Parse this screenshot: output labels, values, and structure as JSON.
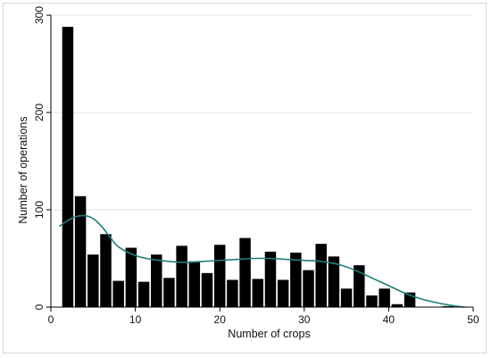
{
  "chart_data": {
    "type": "bar",
    "title": "",
    "xlabel": "Number of crops",
    "ylabel": "Number of operations",
    "xlim": [
      0,
      50
    ],
    "ylim": [
      0,
      300
    ],
    "x_ticks": [
      0,
      10,
      20,
      30,
      40,
      50
    ],
    "y_ticks": [
      0,
      100,
      200,
      300
    ],
    "grid": "horizontal",
    "legend": "none",
    "colors": {
      "bars": "#000000",
      "density": "#1f7f7b",
      "grid": "#d8e4ea"
    },
    "series": [
      {
        "type": "bar",
        "x": [
          2,
          3.5,
          5,
          6.5,
          8,
          9.5,
          11,
          12.5,
          14,
          15.5,
          17,
          18.5,
          20,
          21.5,
          23,
          24.5,
          26,
          27.5,
          29,
          30.5,
          32,
          33.5,
          35,
          36.5,
          38,
          39.5,
          41,
          42.5,
          44,
          45.5,
          47,
          48.5
        ],
        "values": [
          288,
          114,
          54,
          75,
          27,
          61,
          26,
          54,
          30,
          63,
          47,
          35,
          64,
          28,
          71,
          29,
          57,
          28,
          56,
          38,
          65,
          52,
          19,
          43,
          12,
          19,
          3,
          15,
          0,
          0,
          1,
          0
        ]
      },
      {
        "type": "line",
        "x": [
          1,
          2,
          3,
          4,
          5,
          6,
          7,
          8,
          10,
          12,
          14,
          16,
          18,
          20,
          22,
          24,
          26,
          28,
          30,
          32,
          34,
          36,
          38,
          40,
          42,
          44,
          46,
          48,
          49
        ],
        "values": [
          83,
          89,
          93,
          94,
          91,
          83,
          72,
          62,
          53,
          49,
          47,
          46,
          47,
          48,
          49,
          50,
          50,
          49,
          48,
          47,
          44,
          38,
          30,
          22,
          14,
          8,
          4,
          1,
          0
        ]
      }
    ]
  }
}
